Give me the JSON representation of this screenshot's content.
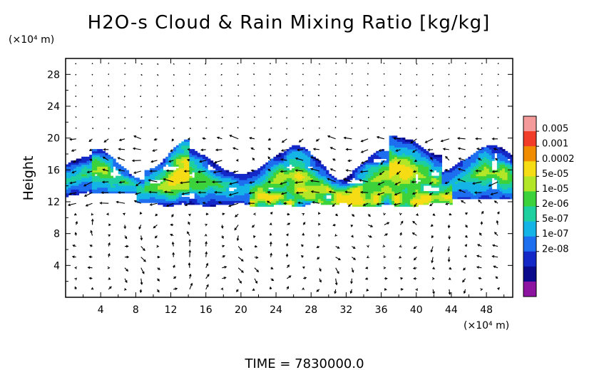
{
  "chart_data": {
    "type": "heatmap",
    "title": "H2O-s Cloud & Rain Mixing Ratio [kg/kg]",
    "ylabel": "Height",
    "x_unit_label": "(×10⁴ m)",
    "y_unit_label": "(×10⁴ m)",
    "footer": "TIME  =  7830000.0",
    "xlim": [
      0,
      51
    ],
    "ylim": [
      0,
      30
    ],
    "x_ticks": [
      "4",
      "8",
      "12",
      "16",
      "20",
      "24",
      "28",
      "32",
      "36",
      "40",
      "44",
      "48"
    ],
    "y_ticks": [
      "4",
      "8",
      "12",
      "16",
      "20",
      "24",
      "28"
    ],
    "colorbar": {
      "labels": [
        "0.005",
        "0.001",
        "0.0002",
        "5e-05",
        "1e-05",
        "2e-06",
        "5e-07",
        "1e-07",
        "2e-08"
      ],
      "colors": [
        "#f59a9a",
        "#f03c28",
        "#f08c00",
        "#f5dc14",
        "#b4e628",
        "#3cd23c",
        "#1ecfa0",
        "#14b4e6",
        "#1e6ef0",
        "#1428c8",
        "#0a0a8c",
        "#8c14a0"
      ]
    },
    "cloud_band": {
      "x_range": [
        0,
        51
      ],
      "bottom_km_x1e4": 11,
      "top_km_x1e4": 20,
      "core_range_x": [
        21,
        44
      ],
      "core_height": 12
    },
    "field_overlay": "wind vectors"
  }
}
